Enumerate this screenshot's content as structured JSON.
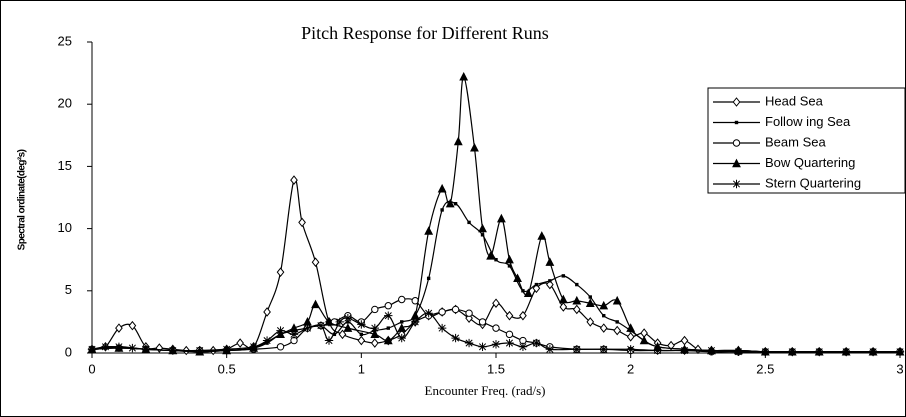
{
  "chart_data": {
    "type": "line",
    "title": "Pitch Response for Different Runs",
    "x_label": "Encounter Freq.  (rad/s)",
    "y_label": "Spectral ordinate(deg²s)",
    "xlim": [
      0,
      3
    ],
    "ylim": [
      0,
      25
    ],
    "xticks": [
      0,
      0.5,
      1,
      1.5,
      2,
      2.5,
      3
    ],
    "yticks": [
      0,
      5,
      10,
      15,
      20,
      25
    ],
    "grid": false,
    "legend": "right",
    "series": [
      {
        "name": "Head Sea",
        "color": "#000000",
        "marker": "diamond",
        "x": [
          0,
          0.05,
          0.1,
          0.15,
          0.2,
          0.25,
          0.3,
          0.35,
          0.4,
          0.45,
          0.5,
          0.55,
          0.6,
          0.65,
          0.7,
          0.75,
          0.78,
          0.83,
          0.88,
          0.93,
          1,
          1.05,
          1.1,
          1.15,
          1.2,
          1.25,
          1.3,
          1.35,
          1.4,
          1.45,
          1.5,
          1.55,
          1.6,
          1.65,
          1.7,
          1.75,
          1.8,
          1.85,
          1.9,
          1.95,
          2,
          2.05,
          2.1,
          2.15,
          2.2,
          2.25,
          2.3,
          2.4,
          2.5,
          2.6,
          2.7,
          2.8,
          2.9,
          3
        ],
        "values": [
          0.3,
          0.5,
          2,
          2.2,
          0.5,
          0.4,
          0.3,
          0.2,
          0.2,
          0.2,
          0.3,
          0.8,
          0.5,
          3.3,
          6.5,
          13.9,
          10.5,
          7.3,
          2.5,
          1.5,
          1,
          0.8,
          1,
          1.5,
          2.5,
          3,
          3.3,
          3.5,
          2.8,
          2.3,
          4,
          3,
          3,
          5.2,
          5.5,
          3.7,
          3.5,
          2.5,
          2,
          1.8,
          1.3,
          1.6,
          0.8,
          0.6,
          1,
          0.3,
          0.2,
          0.2,
          0.1,
          0.1,
          0.1,
          0.1,
          0.1,
          0.1
        ]
      },
      {
        "name": "Follow ing Sea",
        "color": "#000000",
        "marker": "dot",
        "x": [
          0,
          0.1,
          0.2,
          0.3,
          0.4,
          0.5,
          0.6,
          0.65,
          0.7,
          0.75,
          0.8,
          0.85,
          0.9,
          0.95,
          1,
          1.05,
          1.1,
          1.15,
          1.2,
          1.25,
          1.3,
          1.35,
          1.4,
          1.45,
          1.5,
          1.55,
          1.6,
          1.65,
          1.7,
          1.75,
          1.8,
          1.85,
          1.9,
          1.95,
          2,
          2.05,
          2.1,
          2.2,
          2.3,
          2.4,
          2.5,
          2.6,
          2.7,
          2.8,
          2.9,
          3
        ],
        "values": [
          0.3,
          0.5,
          0.3,
          0.2,
          0.1,
          0.2,
          0.4,
          0.8,
          1.5,
          1.8,
          2,
          2.2,
          1.5,
          2.5,
          1.5,
          1.8,
          2,
          2.5,
          3,
          6,
          11.5,
          12,
          10.5,
          9.5,
          7.5,
          7,
          5,
          5.5,
          5.8,
          6.2,
          5.5,
          4.5,
          3,
          2.5,
          1.8,
          1,
          0.5,
          0.3,
          0.2,
          0.2,
          0.1,
          0.1,
          0.1,
          0.1,
          0.1,
          0.1
        ]
      },
      {
        "name": "Beam Sea",
        "color": "#000000",
        "marker": "circle",
        "x": [
          0,
          0.1,
          0.2,
          0.3,
          0.4,
          0.5,
          0.6,
          0.7,
          0.75,
          0.8,
          0.85,
          0.9,
          0.95,
          1,
          1.05,
          1.1,
          1.15,
          1.2,
          1.25,
          1.3,
          1.35,
          1.4,
          1.45,
          1.5,
          1.55,
          1.6,
          1.65,
          1.7,
          1.8,
          1.9,
          2,
          2.1,
          2.2,
          2.3,
          2.4,
          2.5,
          2.6,
          2.7,
          2.8,
          2.9,
          3
        ],
        "values": [
          0.3,
          0.4,
          0.3,
          0.2,
          0.2,
          0.2,
          0.3,
          0.5,
          1,
          2,
          2.2,
          2.5,
          3,
          2.5,
          3.5,
          3.8,
          4.3,
          4.2,
          3,
          3.3,
          3.5,
          3.2,
          2.5,
          2,
          1.5,
          1,
          0.8,
          0.5,
          0.3,
          0.3,
          0.2,
          0.2,
          0.2,
          0.1,
          0.1,
          0.1,
          0.1,
          0.1,
          0.1,
          0.1,
          0.1
        ]
      },
      {
        "name": "Bow  Quartering",
        "color": "#000000",
        "marker": "triangle",
        "x": [
          0,
          0.1,
          0.2,
          0.3,
          0.4,
          0.5,
          0.6,
          0.7,
          0.75,
          0.8,
          0.83,
          0.88,
          0.95,
          1.05,
          1.1,
          1.15,
          1.2,
          1.25,
          1.3,
          1.33,
          1.36,
          1.38,
          1.42,
          1.45,
          1.48,
          1.52,
          1.55,
          1.58,
          1.62,
          1.67,
          1.7,
          1.75,
          1.8,
          1.85,
          1.9,
          1.95,
          2,
          2.05,
          2.1,
          2.2,
          2.3,
          2.4,
          2.5,
          2.6,
          2.7,
          2.8,
          2.9,
          3
        ],
        "values": [
          0.3,
          0.4,
          0.3,
          0.2,
          0.1,
          0.2,
          0.4,
          1.5,
          2,
          2.5,
          3.9,
          2.5,
          2,
          1.5,
          1,
          2,
          3,
          9.8,
          13.2,
          12,
          17,
          22.2,
          16.5,
          10,
          7.8,
          10.8,
          7.5,
          6,
          4.8,
          9.4,
          7.3,
          4.3,
          4.2,
          4,
          3.8,
          4.2,
          2,
          1,
          0.5,
          0.3,
          0.2,
          0.2,
          0.1,
          0.1,
          0.1,
          0.1,
          0.1,
          0.1
        ]
      },
      {
        "name": "Stern Quartering",
        "color": "#000000",
        "marker": "star",
        "x": [
          0,
          0.05,
          0.1,
          0.15,
          0.2,
          0.3,
          0.4,
          0.5,
          0.6,
          0.65,
          0.7,
          0.75,
          0.8,
          0.85,
          0.88,
          0.92,
          0.95,
          1,
          1.05,
          1.1,
          1.15,
          1.2,
          1.25,
          1.3,
          1.35,
          1.4,
          1.45,
          1.5,
          1.55,
          1.6,
          1.65,
          1.7,
          1.8,
          1.9,
          2,
          2.1,
          2.2,
          2.3,
          2.4,
          2.5,
          2.6,
          2.7,
          2.8,
          2.9,
          3
        ],
        "values": [
          0.3,
          0.5,
          0.5,
          0.4,
          0.3,
          0.2,
          0.2,
          0.3,
          0.5,
          1,
          1.8,
          1.5,
          2,
          2.2,
          1,
          2.5,
          2.8,
          2.3,
          2,
          3,
          1.2,
          2.5,
          3.2,
          2,
          1.2,
          0.8,
          0.5,
          0.7,
          0.8,
          0.5,
          0.8,
          0.3,
          0.3,
          0.3,
          0.3,
          0.2,
          0.2,
          0.2,
          0.1,
          0.1,
          0.1,
          0.1,
          0.1,
          0.1,
          0.1
        ]
      }
    ]
  }
}
